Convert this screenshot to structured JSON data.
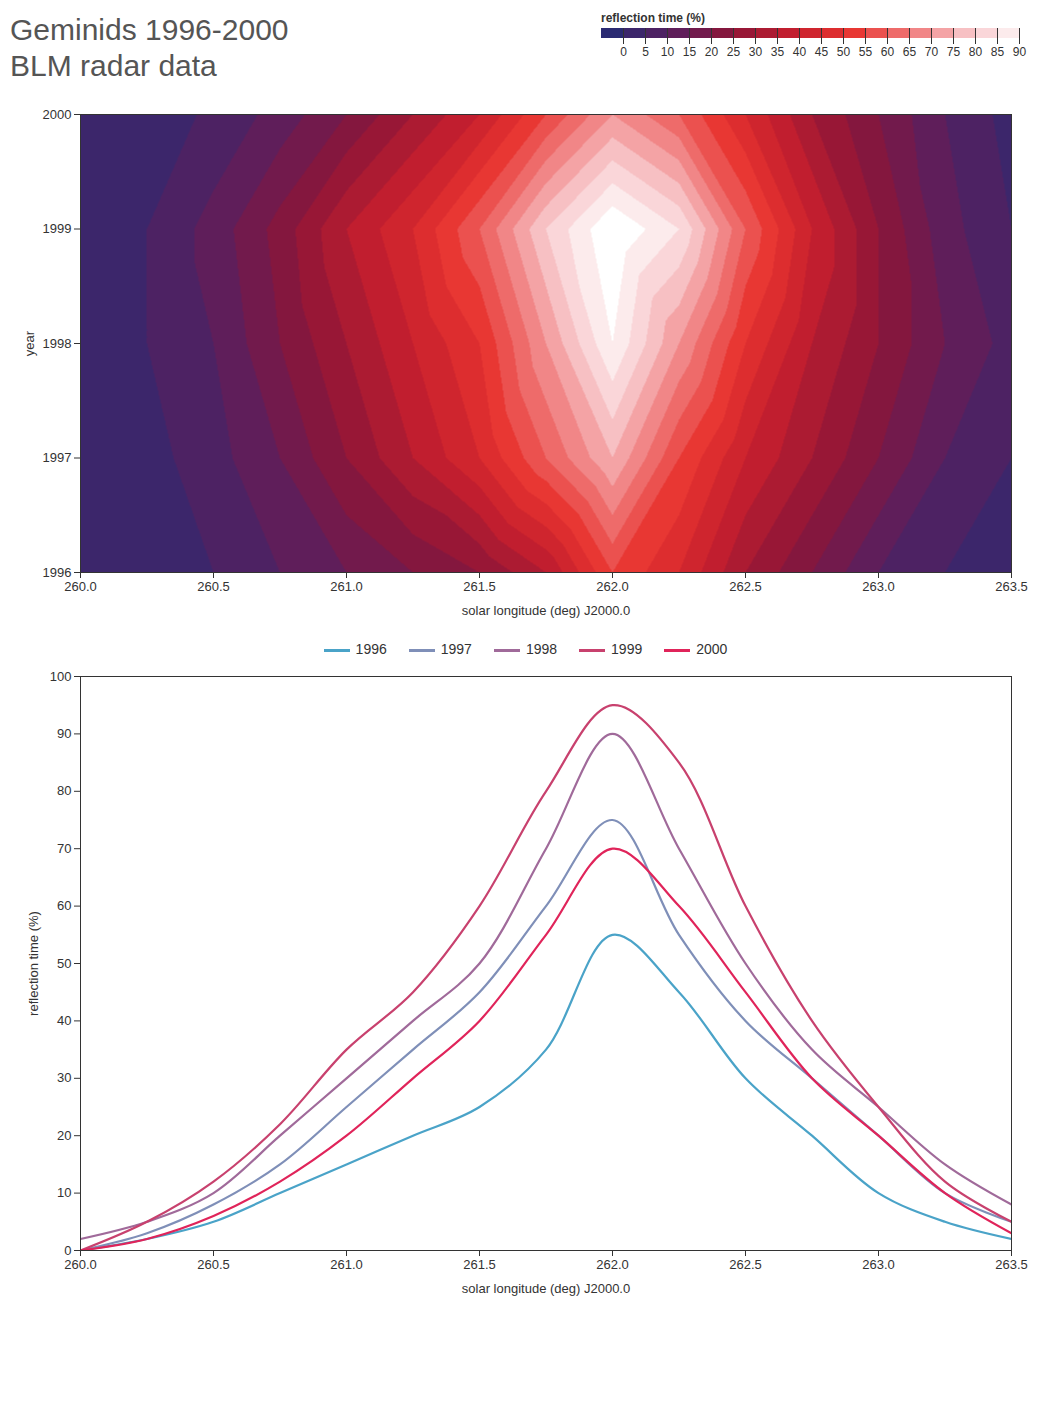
{
  "chart_data": [
    {
      "type": "heatmap",
      "title": "Geminids 1996-2000",
      "subtitle": "BLM radar data",
      "xlabel": "solar longitude (deg) J2000.0",
      "ylabel": "year",
      "x": [
        260.0,
        260.25,
        260.5,
        260.75,
        261.0,
        261.25,
        261.5,
        261.75,
        262.0,
        262.25,
        262.5,
        262.75,
        263.0,
        263.25,
        263.5
      ],
      "y": [
        1996,
        1997,
        1998,
        1999,
        2000
      ],
      "cells": [
        [
          0,
          2,
          5,
          10,
          15,
          20,
          25,
          35,
          55,
          45,
          30,
          20,
          10,
          5,
          2
        ],
        [
          0,
          3,
          8,
          15,
          25,
          35,
          45,
          60,
          75,
          55,
          40,
          30,
          20,
          10,
          5
        ],
        [
          2,
          5,
          10,
          20,
          30,
          40,
          50,
          70,
          90,
          70,
          50,
          35,
          25,
          15,
          8
        ],
        [
          0,
          5,
          12,
          22,
          35,
          45,
          60,
          80,
          95,
          85,
          60,
          40,
          25,
          12,
          5
        ],
        [
          0,
          2,
          6,
          12,
          20,
          30,
          40,
          55,
          70,
          60,
          45,
          30,
          20,
          10,
          3
        ]
      ],
      "xlim": [
        260.0,
        263.5
      ],
      "xticks": [
        {
          "value": 260,
          "label": "260.0"
        },
        260.5,
        {
          "value": 261,
          "label": "261.0"
        },
        261.5,
        {
          "value": 262,
          "label": "262.0"
        },
        262.5,
        {
          "value": 263,
          "label": "263.0"
        },
        263.5
      ],
      "ylim": [
        1996,
        2000
      ],
      "yticks": [
        1996,
        1997,
        1998,
        1999,
        2000
      ],
      "colorbar": {
        "label": "reflection time (%)",
        "ticks": [
          0,
          5,
          10,
          15,
          20,
          25,
          30,
          35,
          40,
          45,
          50,
          55,
          60,
          65,
          70,
          75,
          80,
          85,
          90
        ]
      }
    },
    {
      "type": "line",
      "xlabel": "solar longitude (deg) J2000.0",
      "ylabel": "reflection time (%)",
      "x": [
        260.0,
        260.25,
        260.5,
        260.75,
        261.0,
        261.25,
        261.5,
        261.75,
        262.0,
        262.25,
        262.5,
        262.75,
        263.0,
        263.25,
        263.5
      ],
      "xlim": [
        260.0,
        263.5
      ],
      "xticks": [
        {
          "value": 260,
          "label": "260.0"
        },
        260.5,
        {
          "value": 261,
          "label": "261.0"
        },
        261.5,
        {
          "value": 262,
          "label": "262.0"
        },
        262.5,
        {
          "value": 263,
          "label": "263.0"
        },
        263.5
      ],
      "ylim": [
        0,
        100
      ],
      "yticks": [
        0,
        10,
        20,
        30,
        40,
        50,
        60,
        70,
        80,
        90,
        100
      ],
      "legend": "top",
      "series": [
        {
          "name": "1996",
          "color": "#4aa3c8",
          "values": [
            0,
            2,
            5,
            10,
            15,
            20,
            25,
            35,
            55,
            45,
            30,
            20,
            10,
            5,
            2
          ]
        },
        {
          "name": "1997",
          "color": "#7f8fb8",
          "values": [
            0,
            3,
            8,
            15,
            25,
            35,
            45,
            60,
            75,
            55,
            40,
            30,
            20,
            10,
            5
          ]
        },
        {
          "name": "1998",
          "color": "#a06a9a",
          "values": [
            2,
            5,
            10,
            20,
            30,
            40,
            50,
            70,
            90,
            70,
            50,
            35,
            25,
            15,
            8
          ]
        },
        {
          "name": "1999",
          "color": "#c8416e",
          "values": [
            0,
            5,
            12,
            22,
            35,
            45,
            60,
            80,
            95,
            85,
            60,
            40,
            25,
            12,
            5
          ]
        },
        {
          "name": "2000",
          "color": "#e0245a",
          "values": [
            0,
            2,
            6,
            12,
            20,
            30,
            40,
            55,
            70,
            60,
            45,
            30,
            20,
            10,
            3
          ]
        }
      ]
    }
  ]
}
